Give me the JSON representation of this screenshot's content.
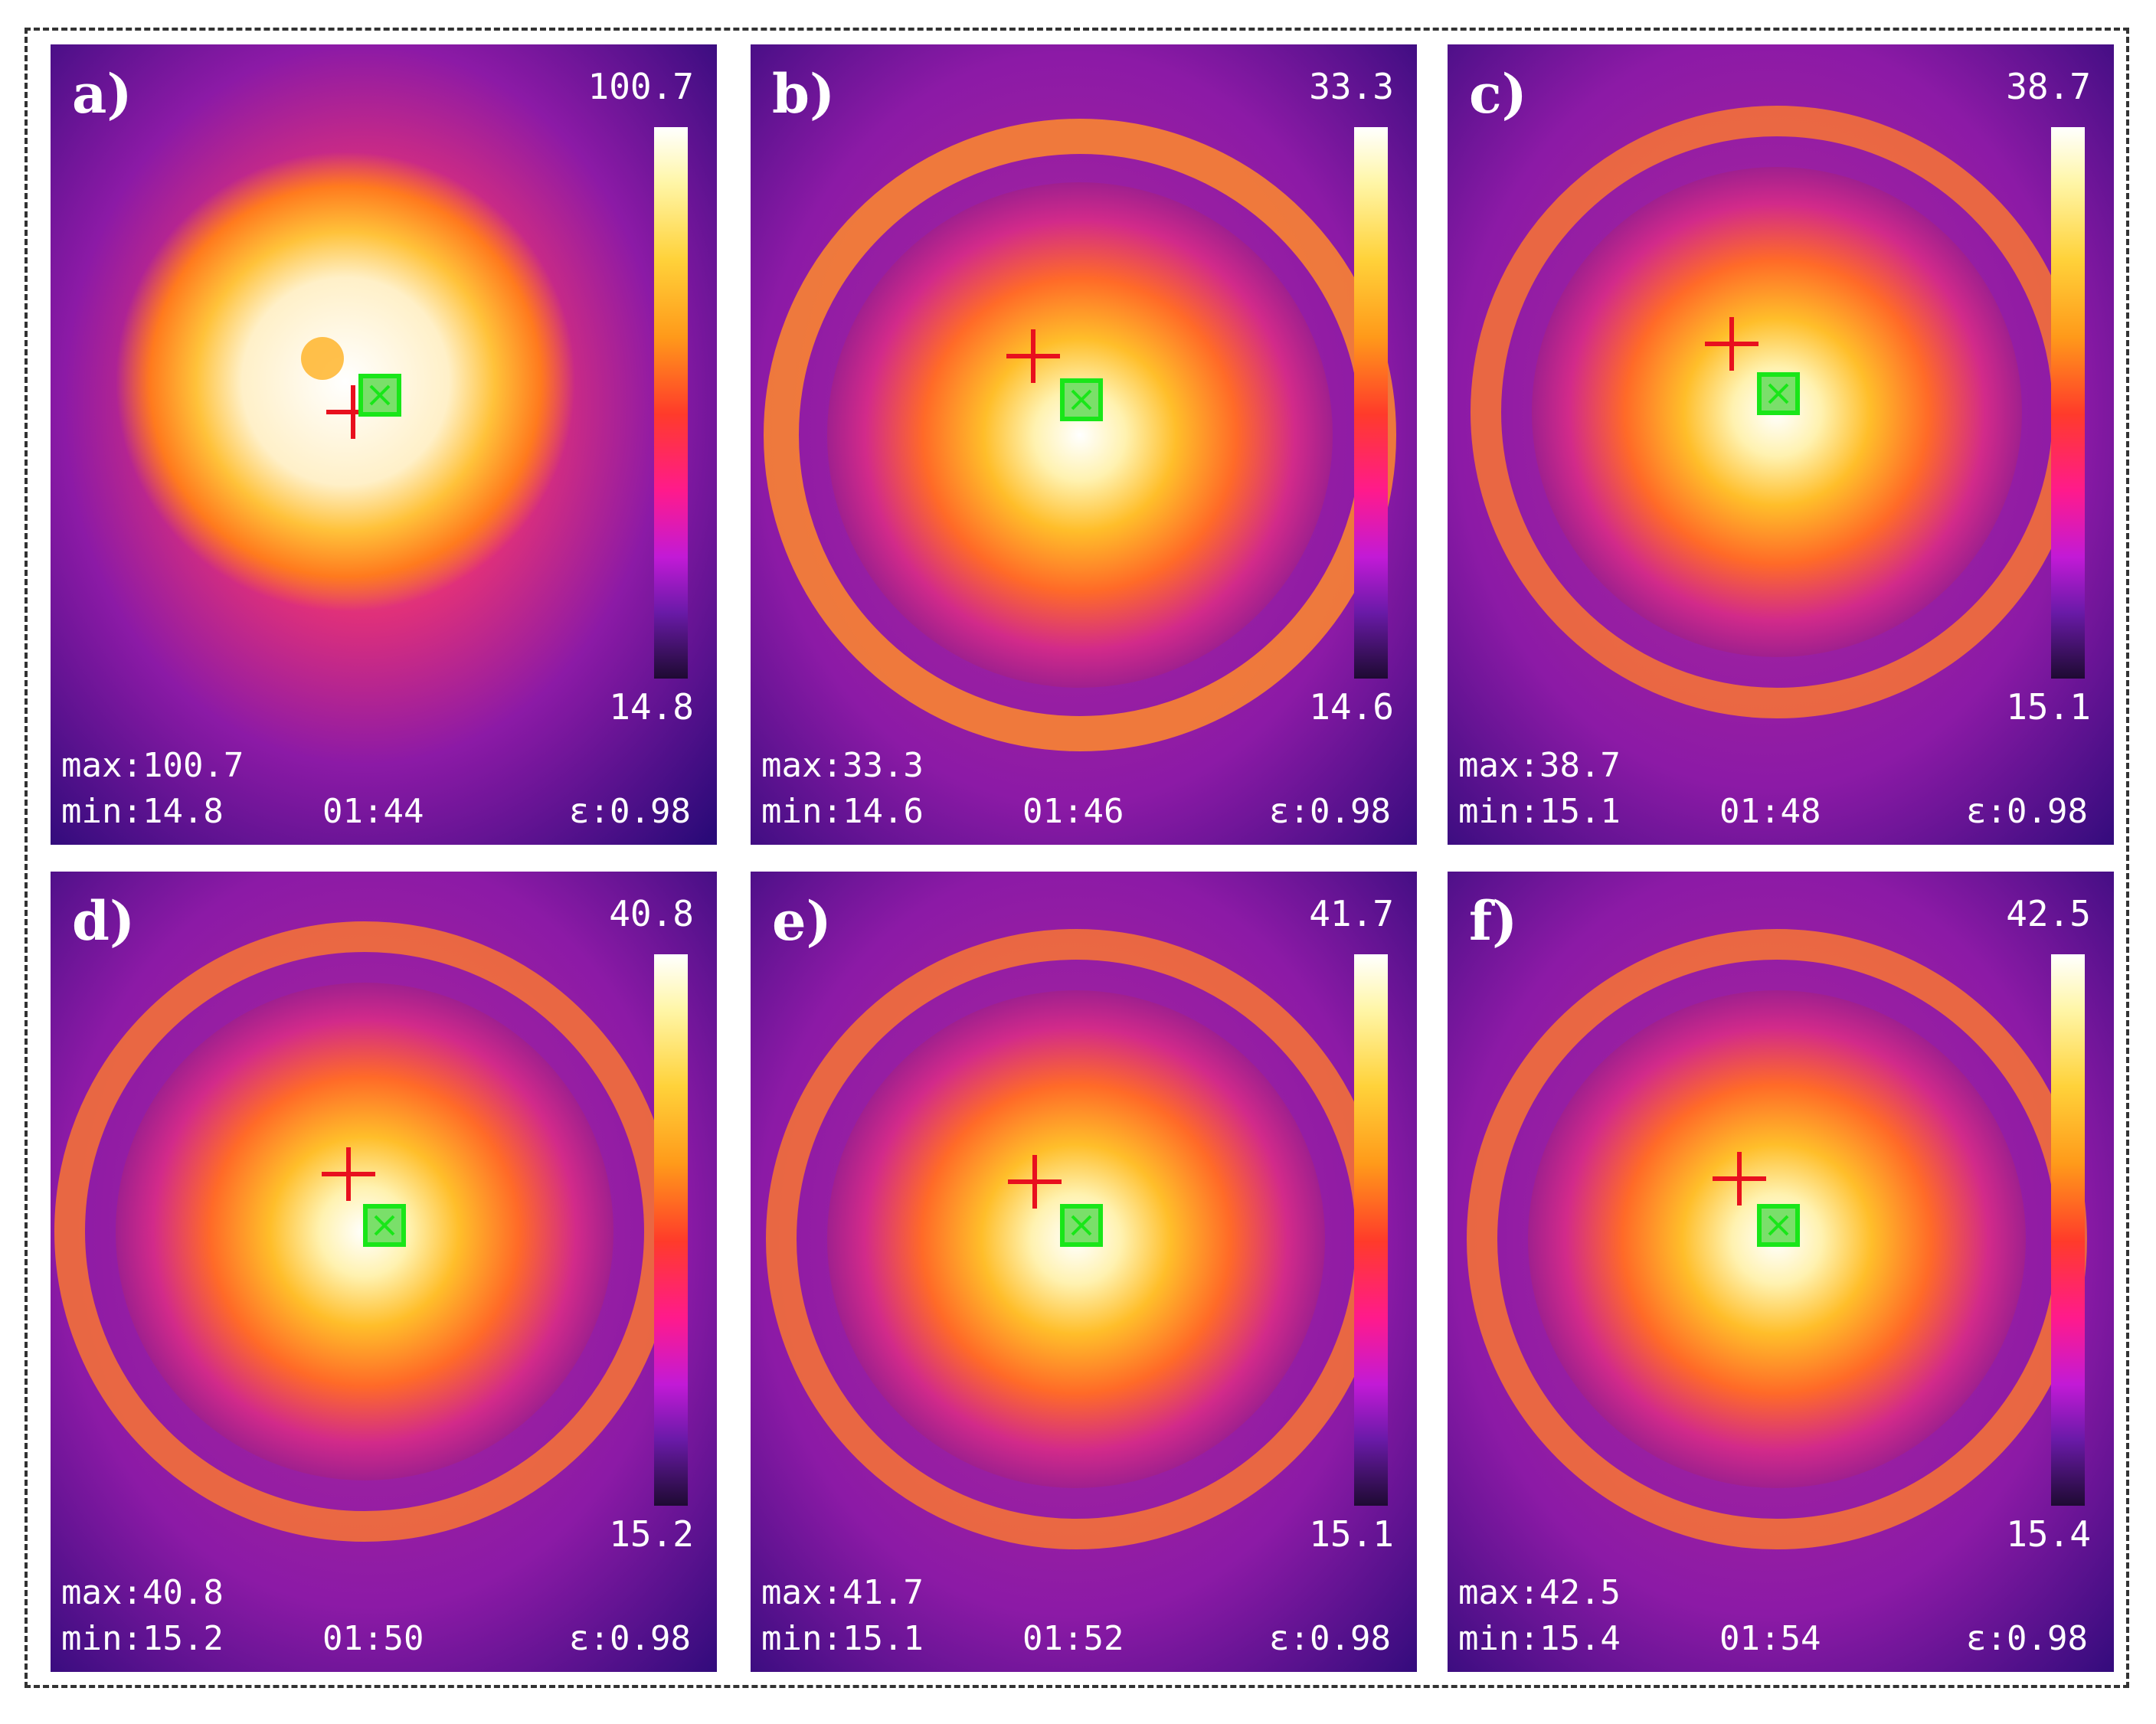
{
  "panels": [
    {
      "label": "a)",
      "scale_max": "100.7",
      "scale_min": "14.8",
      "info_max": "max:100.7",
      "info_min": "min:14.8",
      "time": "01:44",
      "emissivity": "ε:0.98",
      "variant": "early"
    },
    {
      "label": "b)",
      "scale_max": "33.3",
      "scale_min": "14.6",
      "info_max": "max:33.3",
      "info_min": "min:14.6",
      "time": "01:46",
      "emissivity": "ε:0.98",
      "variant": "ring"
    },
    {
      "label": "c)",
      "scale_max": "38.7",
      "scale_min": "15.1",
      "info_max": "max:38.7",
      "info_min": "min:15.1",
      "time": "01:48",
      "emissivity": "ε:0.98",
      "variant": "ring"
    },
    {
      "label": "d)",
      "scale_max": "40.8",
      "scale_min": "15.2",
      "info_max": "max:40.8",
      "info_min": "min:15.2",
      "time": "01:50",
      "emissivity": "ε:0.98",
      "variant": "ring"
    },
    {
      "label": "e)",
      "scale_max": "41.7",
      "scale_min": "15.1",
      "info_max": "max:41.7",
      "info_min": "min:15.1",
      "time": "01:52",
      "emissivity": "ε:0.98",
      "variant": "ring"
    },
    {
      "label": "f)",
      "scale_max": "42.5",
      "scale_min": "15.4",
      "info_max": "max:42.5",
      "info_min": "min:15.4",
      "time": "01:54",
      "emissivity": "ε:0.98",
      "variant": "ring"
    }
  ],
  "colors": {
    "background_cold": "#2a0a78",
    "crosshair": "#e8101e",
    "marker_box": "#19e619",
    "frame_border": "#333333"
  },
  "icons": {
    "crosshair": "crosshair-icon",
    "marker": "measurement-box-icon"
  }
}
